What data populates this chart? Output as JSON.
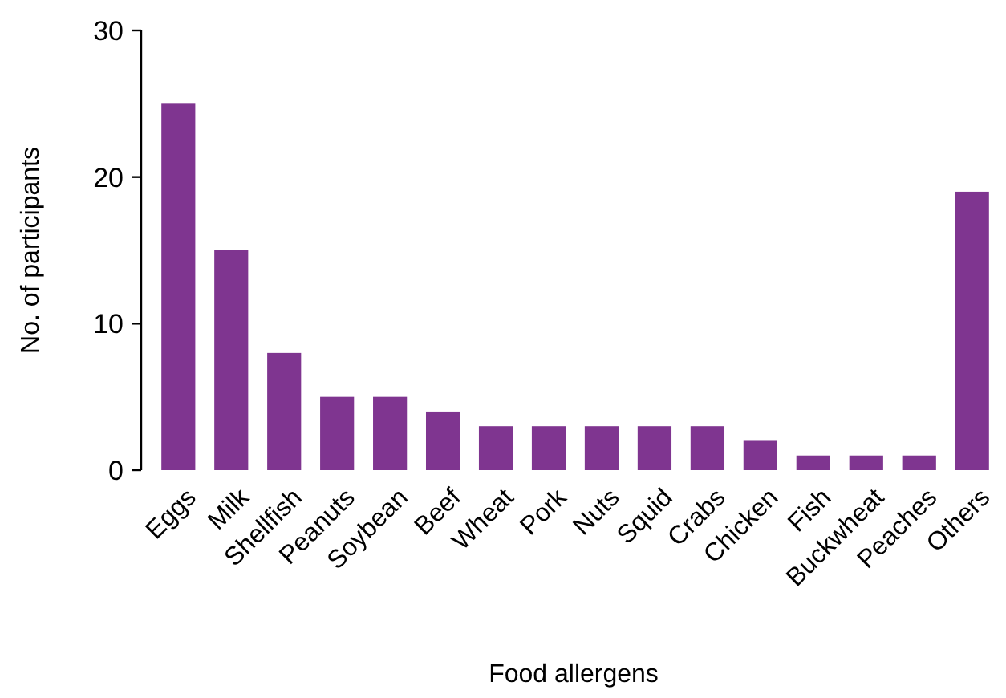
{
  "chart_data": {
    "type": "bar",
    "xlabel": "Food allergens",
    "ylabel": "No. of participants",
    "categories": [
      "Eggs",
      "Milk",
      "Shellfish",
      "Peanuts",
      "Soybean",
      "Beef",
      "Wheat",
      "Pork",
      "Nuts",
      "Squid",
      "Crabs",
      "Chicken",
      "Fish",
      "Buckwheat",
      "Peaches",
      "Others"
    ],
    "values": [
      25,
      15,
      8,
      5,
      5,
      4,
      3,
      3,
      3,
      3,
      3,
      2,
      1,
      1,
      1,
      19
    ],
    "color": "#7f3590",
    "ylim": [
      0,
      30
    ],
    "yticks": [
      0,
      10,
      20,
      30
    ],
    "grid": false
  }
}
